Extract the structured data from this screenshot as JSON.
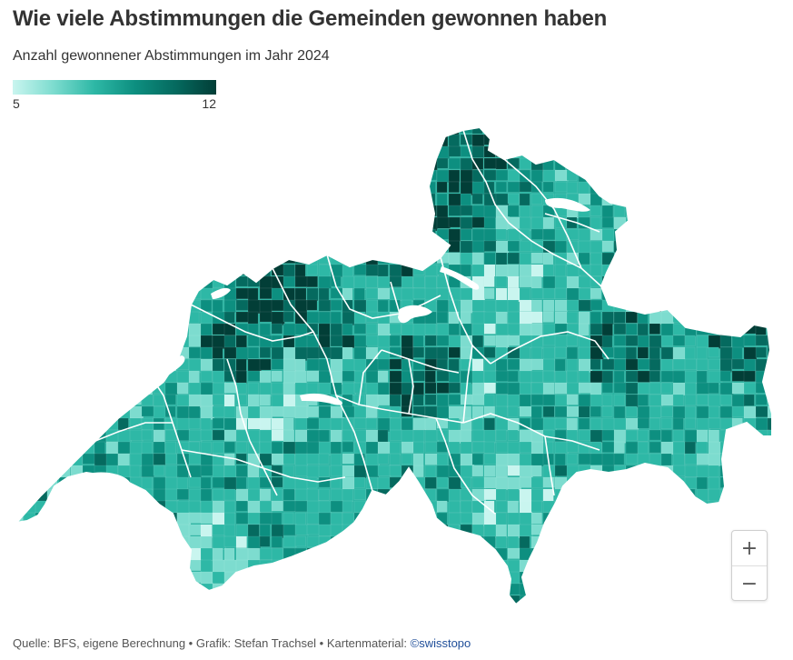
{
  "title": "Wie viele Abstimmungen die Gemeinden gewonnen haben",
  "subtitle": "Anzahl gewonnener Abstimmungen im Jahr 2024",
  "legend": {
    "min_label": "5",
    "max_label": "12",
    "colors": [
      "#c9f5ef",
      "#7ddccf",
      "#2eb8a6",
      "#0d8f80",
      "#056a5f",
      "#023e37"
    ]
  },
  "map": {
    "base_color": "#29b3a1",
    "border_color": "#ffffff"
  },
  "zoom": {
    "in_label": "+",
    "out_label": "−"
  },
  "footer": {
    "text": "Quelle: BFS, eigene Berechnung • Grafik: Stefan Trachsel • Kartenmaterial: ",
    "link": "©swisstopo"
  }
}
